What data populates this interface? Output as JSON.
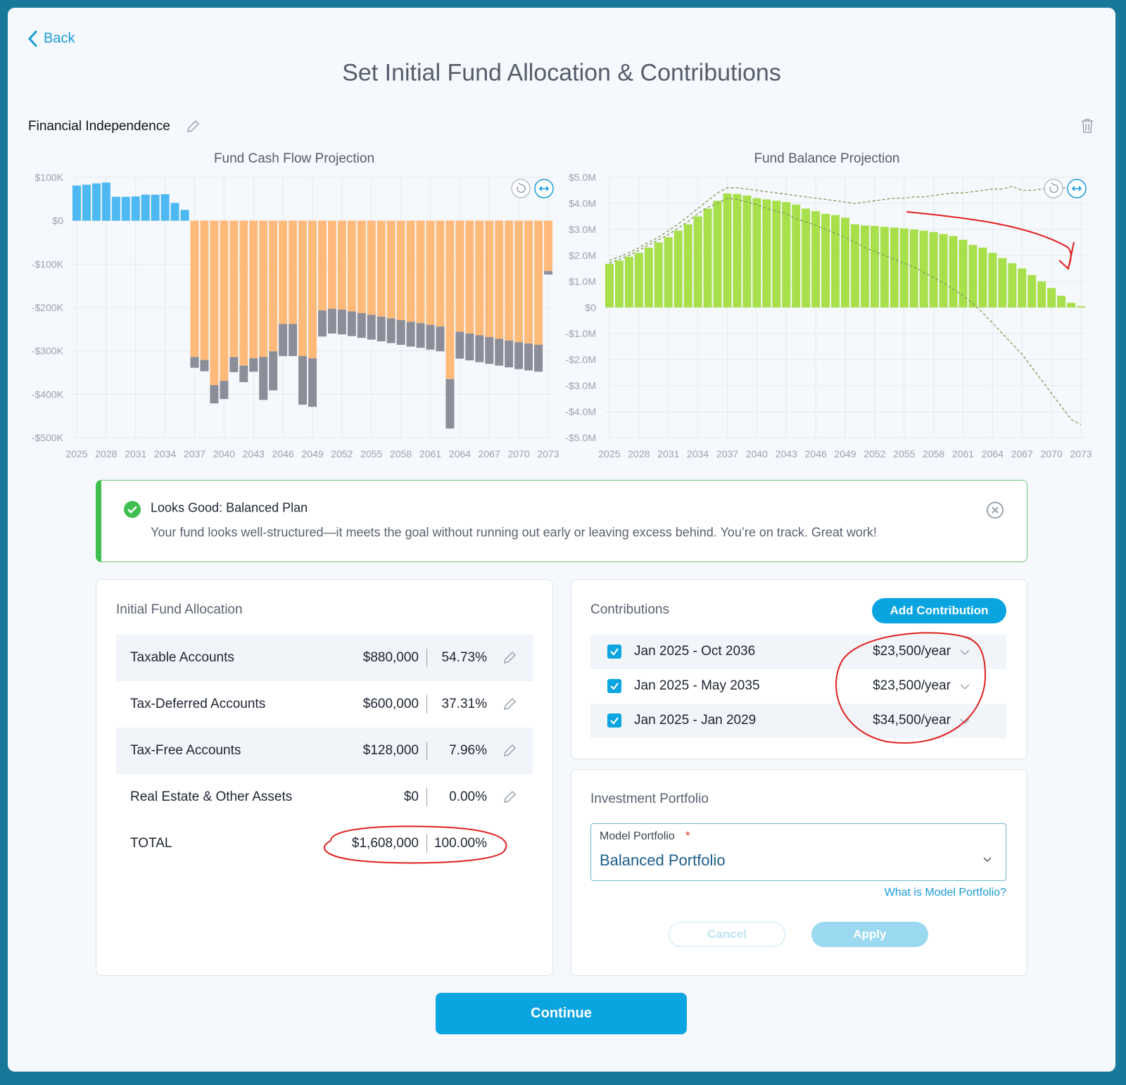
{
  "header": {
    "back": "Back",
    "title": "Set Initial Fund Allocation & Contributions"
  },
  "goal": {
    "name": "Financial Independence"
  },
  "chart_data": [
    {
      "type": "bar",
      "title": "Fund Cash Flow Projection",
      "categories": [
        2025,
        null,
        null,
        2028,
        null,
        null,
        2031,
        null,
        null,
        2034,
        null,
        null,
        2037,
        null,
        null,
        2040,
        null,
        null,
        2043,
        null,
        null,
        2046,
        null,
        null,
        2049,
        null,
        null,
        2052,
        null,
        null,
        2055,
        null,
        null,
        2058,
        null,
        null,
        2061,
        null,
        null,
        2064,
        null,
        null,
        2067,
        null,
        null,
        2070,
        null,
        null,
        2073
      ],
      "ylim": [
        -500000,
        100000
      ],
      "yticks": [
        {
          "value": 100000,
          "label": "$100K"
        },
        {
          "value": 0,
          "label": "$0"
        },
        {
          "value": -100000,
          "label": "-$100K"
        },
        {
          "value": -200000,
          "label": "-$200K"
        },
        {
          "value": -300000,
          "label": "-$300K"
        },
        {
          "value": -400000,
          "label": "-$400K"
        },
        {
          "value": -500000,
          "label": "-$500K"
        }
      ],
      "grid": true,
      "series": [
        {
          "color": "#4db8f2",
          "values": [
            81000,
            83000,
            86000,
            88000,
            55000,
            55000,
            56000,
            60000,
            60000,
            61000,
            41000,
            25000,
            null,
            null,
            null,
            null,
            null,
            null,
            null,
            null,
            null,
            null,
            null,
            null,
            null,
            null,
            null,
            null,
            null,
            null,
            null,
            null,
            null,
            null,
            null,
            null,
            null,
            null,
            null,
            null,
            null,
            null,
            null,
            null,
            null,
            null,
            null,
            null,
            null
          ]
        },
        {
          "color": "#ffba7a",
          "values": [
            null,
            null,
            null,
            null,
            null,
            null,
            null,
            null,
            null,
            null,
            null,
            null,
            -314000,
            -321000,
            -379000,
            -369000,
            -314000,
            -334000,
            -317000,
            -314000,
            -301000,
            -238000,
            -238000,
            -312000,
            -317000,
            -207000,
            -203000,
            -205000,
            -209000,
            -213000,
            -217000,
            -221000,
            -225000,
            -229000,
            -233000,
            -236000,
            -240000,
            -244000,
            -365000,
            -256000,
            -260000,
            -264000,
            -268000,
            -272000,
            -276000,
            -280000,
            -283000,
            -286000,
            -116000
          ]
        },
        {
          "color": "#8b8d99",
          "values": [
            null,
            null,
            null,
            null,
            null,
            null,
            null,
            null,
            null,
            null,
            null,
            null,
            -25000,
            -26000,
            -42000,
            -42000,
            -35000,
            -38000,
            -31000,
            -99000,
            -90000,
            -74000,
            -74000,
            -112000,
            -112000,
            -60000,
            -57000,
            -57000,
            -57000,
            -57000,
            -57000,
            -57000,
            -57000,
            -57000,
            -57000,
            -57000,
            -57000,
            -57000,
            -114000,
            -62000,
            -62000,
            -62000,
            -62000,
            -62000,
            -62000,
            -62000,
            -62000,
            -62000,
            -8000
          ]
        }
      ]
    },
    {
      "type": "bar",
      "title": "Fund Balance Projection",
      "categories": [
        2025,
        null,
        null,
        2028,
        null,
        null,
        2031,
        null,
        null,
        2034,
        null,
        null,
        2037,
        null,
        null,
        2040,
        null,
        null,
        2043,
        null,
        null,
        2046,
        null,
        null,
        2049,
        null,
        null,
        2052,
        null,
        null,
        2055,
        null,
        null,
        2058,
        null,
        null,
        2061,
        null,
        null,
        2064,
        null,
        null,
        2067,
        null,
        null,
        2070,
        null,
        null,
        2073
      ],
      "ylim": [
        -5000000,
        5000000
      ],
      "yticks": [
        {
          "value": 5000000,
          "label": "$5.0M"
        },
        {
          "value": 4000000,
          "label": "$4.0M"
        },
        {
          "value": 3000000,
          "label": "$3.0M"
        },
        {
          "value": 2000000,
          "label": "$2.0M"
        },
        {
          "value": 1000000,
          "label": "$1.0M"
        },
        {
          "value": 0,
          "label": "$0"
        },
        {
          "value": -1000000,
          "label": "-$1.0M"
        },
        {
          "value": -2000000,
          "label": "-$2.0M"
        },
        {
          "value": -3000000,
          "label": "-$3.0M"
        },
        {
          "value": -4000000,
          "label": "-$4.0M"
        },
        {
          "value": -5000000,
          "label": "-$5.0M"
        }
      ],
      "grid": true,
      "series": [
        {
          "color": "#a8e04c",
          "values": [
            1680000,
            1800000,
            1950000,
            2100000,
            2300000,
            2500000,
            2700000,
            2950000,
            3200000,
            3500000,
            3800000,
            4100000,
            4380000,
            4360000,
            4300000,
            4200000,
            4150000,
            4100000,
            4050000,
            3950000,
            3800000,
            3700000,
            3600000,
            3550000,
            3450000,
            3200000,
            3150000,
            3130000,
            3100000,
            3070000,
            3040000,
            3000000,
            2950000,
            2900000,
            2820000,
            2750000,
            2600000,
            2400000,
            2300000,
            2100000,
            1900000,
            1700000,
            1500000,
            1250000,
            1000000,
            750000,
            450000,
            180000,
            50000
          ]
        },
        {
          "type": "line",
          "style": "dashed",
          "color": "#7f9c52",
          "values": [
            1800000,
            1950000,
            2100000,
            2300000,
            2500000,
            2700000,
            2950000,
            3200000,
            3500000,
            3800000,
            4100000,
            4400000,
            4600000,
            4600000,
            4550000,
            4500000,
            4450000,
            4400000,
            4350000,
            4300000,
            4250000,
            4200000,
            4150000,
            4100000,
            4050000,
            4000000,
            4050000,
            4100000,
            4150000,
            4200000,
            4200000,
            4250000,
            4250000,
            4300000,
            4350000,
            4400000,
            4400000,
            4450000,
            4500000,
            4550000,
            4550000,
            4650000,
            4500000,
            4500000,
            4550000,
            4550000,
            4600000,
            4600000,
            4650000
          ]
        },
        {
          "type": "line",
          "style": "dashed",
          "color": "#7f9c52",
          "values": [
            1700000,
            1850000,
            2000000,
            2200000,
            2400000,
            2600000,
            2800000,
            3050000,
            3300000,
            3600000,
            3850000,
            4000000,
            4200000,
            4150000,
            4050000,
            3950000,
            3800000,
            3700000,
            3600000,
            3400000,
            3300000,
            3150000,
            3000000,
            2850000,
            2700000,
            2500000,
            2300000,
            2150000,
            2000000,
            1850000,
            1700000,
            1550000,
            1350000,
            1150000,
            950000,
            700000,
            450000,
            150000,
            -200000,
            -600000,
            -1000000,
            -1400000,
            -1800000,
            -2300000,
            -2800000,
            -3300000,
            -3800000,
            -4300000,
            -4500000
          ]
        }
      ]
    }
  ],
  "alert": {
    "title": "Looks Good: Balanced Plan",
    "message": "Your fund looks well-structured—it meets the goal without running out early or leaving excess behind. You’re on track. Great work!"
  },
  "allocation": {
    "title": "Initial Fund Allocation",
    "rows": [
      [
        "Taxable Accounts",
        "$880,000",
        "54.73%"
      ],
      [
        "Tax-Deferred Accounts",
        "$600,000",
        "37.31%"
      ],
      [
        "Tax-Free Accounts",
        "$128,000",
        "7.96%"
      ],
      [
        "Real Estate & Other Assets",
        "$0",
        "0.00%"
      ]
    ],
    "total": [
      "TOTAL",
      "$1,608,000",
      "100.00%"
    ]
  },
  "contributions": {
    "title": "Contributions",
    "add_button": "Add Contribution",
    "rows": [
      [
        "Jan 2025 - Oct 2036",
        "$23,500/year"
      ],
      [
        "Jan 2025 - May 2035",
        "$23,500/year"
      ],
      [
        "Jan 2025 - Jan 2029",
        "$34,500/year"
      ]
    ]
  },
  "portfolio": {
    "title": "Investment Portfolio",
    "field_label": "Model Portfolio",
    "required": "*",
    "value": "Balanced Portfolio",
    "help_link": "What is Model Portfolio?",
    "cancel": "Cancel",
    "apply": "Apply"
  },
  "continue": "Continue"
}
